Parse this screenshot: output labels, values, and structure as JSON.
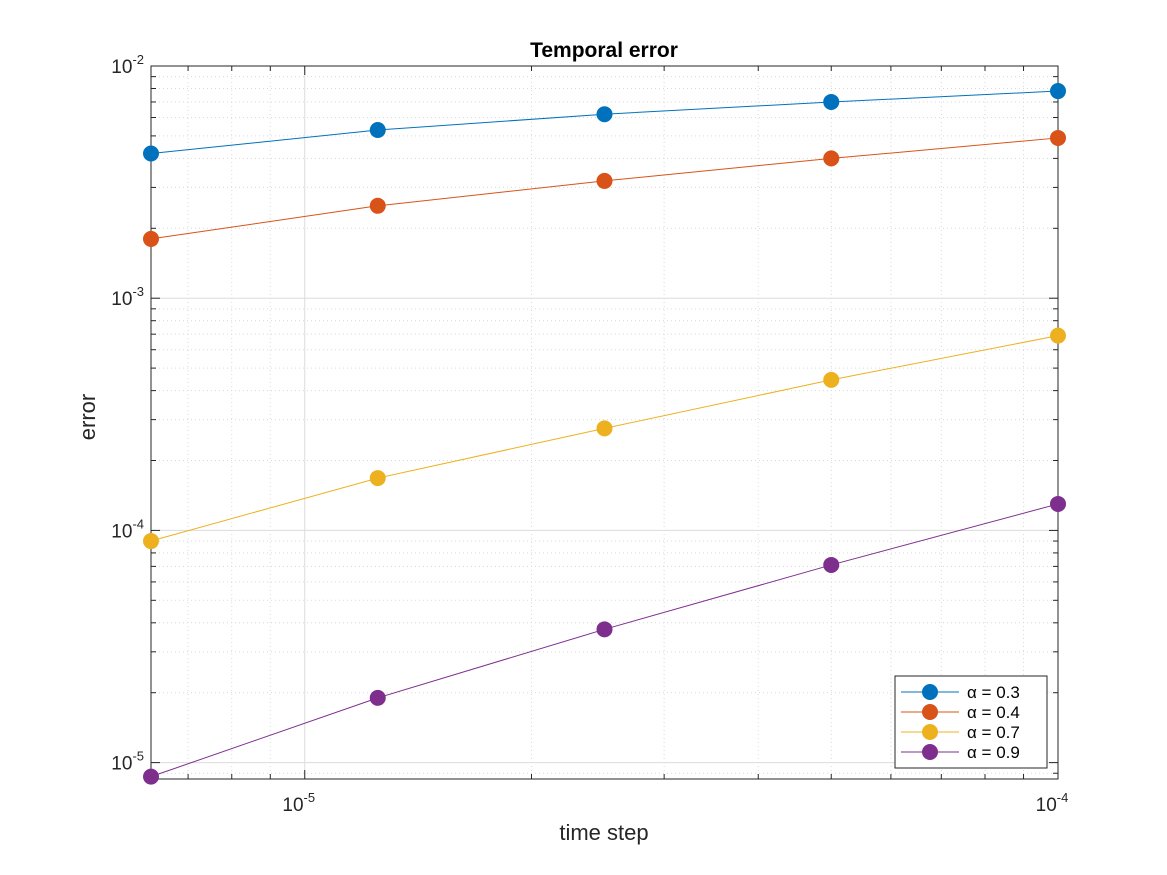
{
  "chart_data": {
    "type": "line",
    "title": "Temporal error",
    "xlabel": "time step",
    "ylabel": "error",
    "xscale": "log",
    "yscale": "log",
    "xlim": [
      6.25e-06,
      0.0001
    ],
    "ylim": [
      8.5e-06,
      0.01
    ],
    "grid": true,
    "minor_grid": true,
    "legend_position": "bottom-right",
    "x": [
      6.25e-06,
      1.25e-05,
      2.5e-05,
      5e-05,
      0.0001
    ],
    "x_ticks": [
      {
        "value": 1e-05,
        "base": "10",
        "exponent": "-5"
      },
      {
        "value": 0.0001,
        "base": "10",
        "exponent": "-4"
      }
    ],
    "y_ticks": [
      {
        "value": 1e-05,
        "base": "10",
        "exponent": "-5"
      },
      {
        "value": 0.0001,
        "base": "10",
        "exponent": "-4"
      },
      {
        "value": 0.001,
        "base": "10",
        "exponent": "-3"
      },
      {
        "value": 0.01,
        "base": "10",
        "exponent": "-2"
      }
    ],
    "series": [
      {
        "name": "α = 0.3",
        "color": "#0072BD",
        "values": [
          0.0042,
          0.0053,
          0.0062,
          0.007,
          0.0078
        ]
      },
      {
        "name": "α = 0.4",
        "color": "#D95319",
        "values": [
          0.0018,
          0.0025,
          0.0032,
          0.004,
          0.0049
        ]
      },
      {
        "name": "α = 0.7",
        "color": "#EDB120",
        "values": [
          9e-05,
          0.000168,
          0.000275,
          0.000445,
          0.00069
        ]
      },
      {
        "name": "α = 0.9",
        "color": "#7E2F8E",
        "values": [
          8.7e-06,
          1.9e-05,
          3.75e-05,
          7.1e-05,
          0.00013
        ]
      }
    ]
  }
}
